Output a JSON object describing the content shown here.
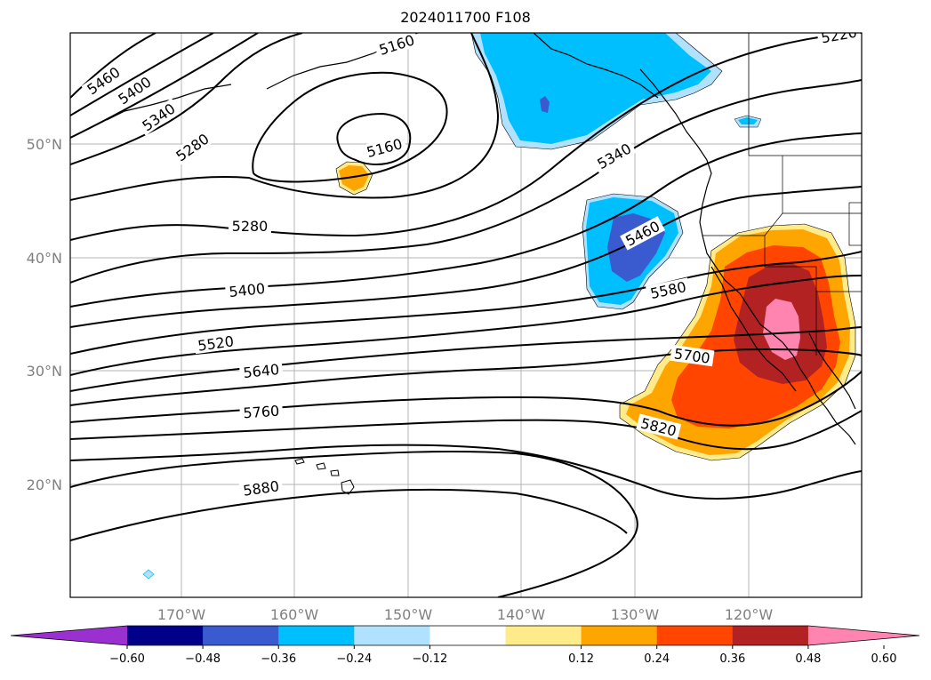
{
  "title": "2024011700 F108",
  "lat_labels": [
    "50°N",
    "40°N",
    "30°N",
    "20°N"
  ],
  "lon_labels": [
    "170°W",
    "160°W",
    "150°W",
    "140°W",
    "130°W",
    "120°W"
  ],
  "contour_labels": [
    "5460",
    "5400",
    "5340",
    "5280",
    "5160",
    "5160",
    "5220",
    "5340",
    "5280",
    "5400",
    "5460",
    "5520",
    "5580",
    "5640",
    "5700",
    "5760",
    "5820",
    "5880"
  ],
  "colorbar": {
    "ticks": [
      "−0.60",
      "−0.48",
      "−0.36",
      "−0.24",
      "−0.12",
      "0.12",
      "0.24",
      "0.36",
      "0.48",
      "0.60"
    ],
    "colors": [
      "#9b30d0",
      "#00008b",
      "#3a5bd0",
      "#00bfff",
      "#b0e2ff",
      "#ffffff",
      "#ffeb8a",
      "#ffa500",
      "#ff4500",
      "#b22222",
      "#ff85b0"
    ]
  }
}
